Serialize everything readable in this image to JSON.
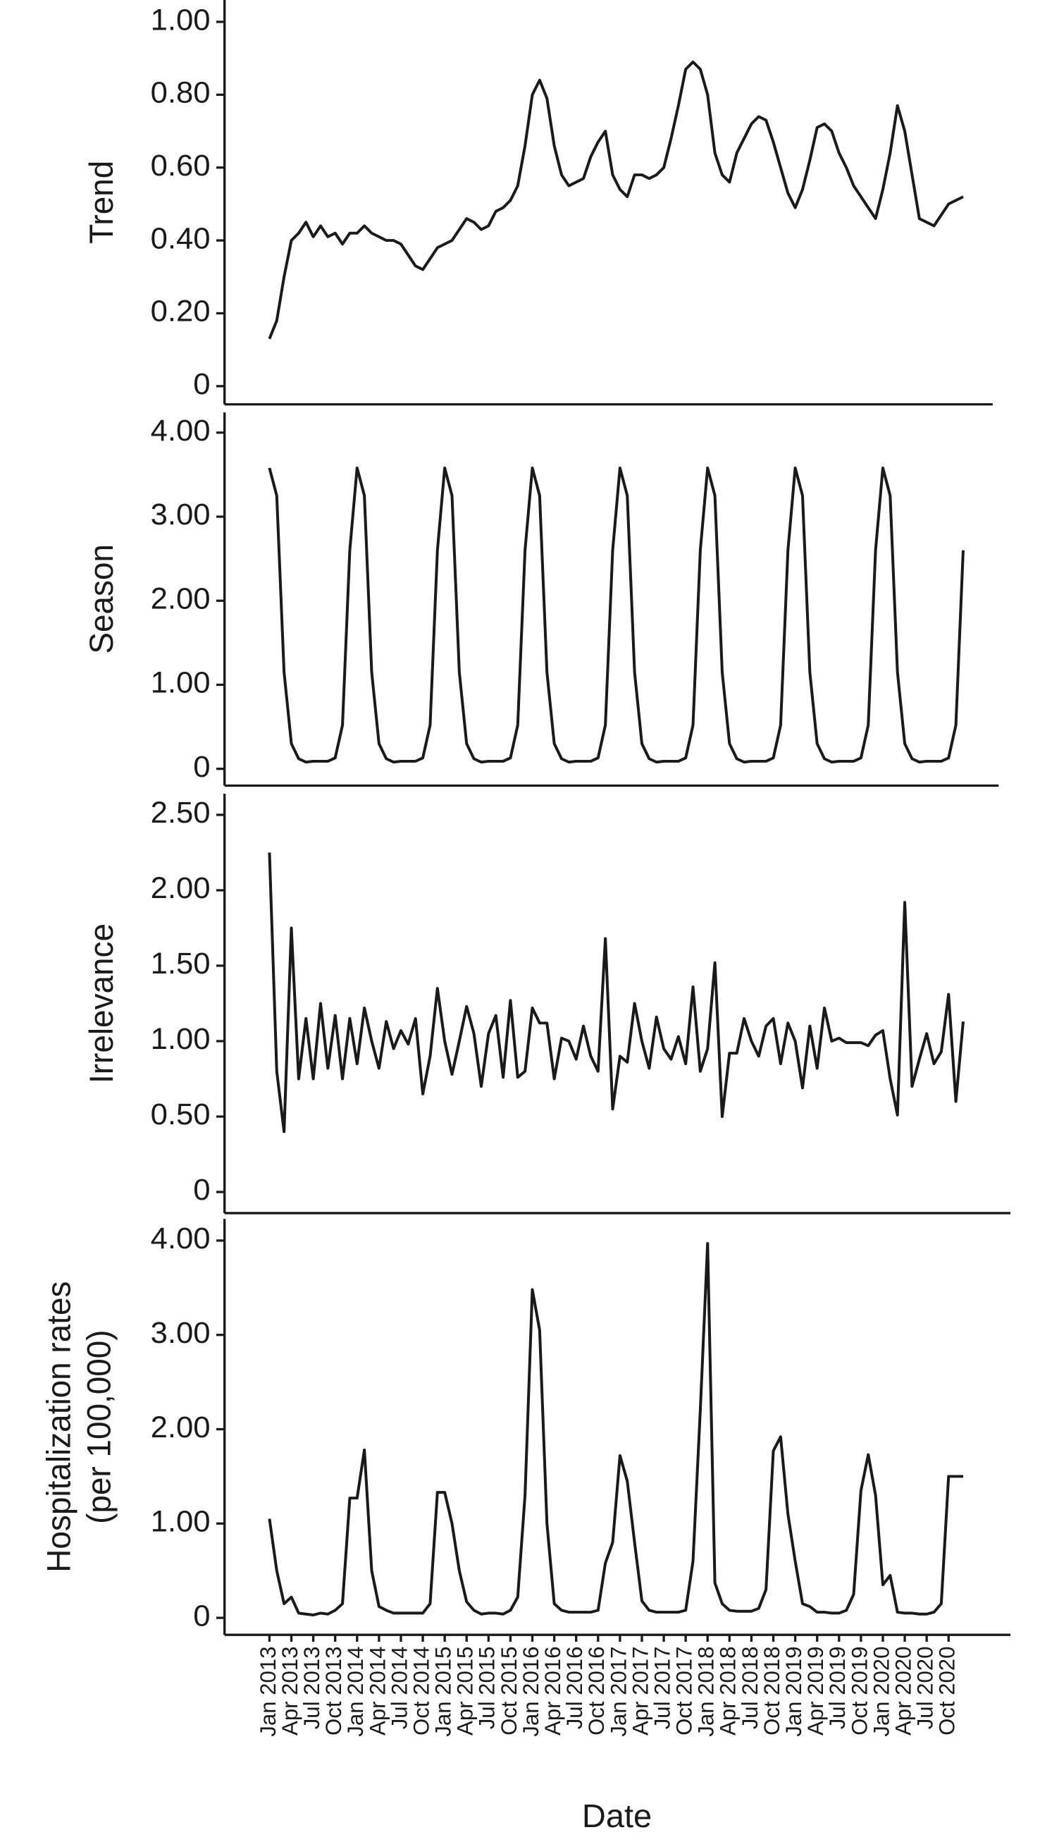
{
  "chart_data": [
    {
      "type": "line",
      "ylabel": "Trend",
      "color": "#1a1a1a",
      "ylim": [
        -0.05,
        1.06
      ],
      "yticks": [
        {
          "value": 0,
          "label": "0"
        },
        {
          "value": 0.2,
          "label": "0.20"
        },
        {
          "value": 0.4,
          "label": "0.40"
        },
        {
          "value": 0.6,
          "label": "0.60"
        },
        {
          "value": 0.8,
          "label": "0.80"
        },
        {
          "value": 1,
          "label": "1.00"
        }
      ],
      "values": [
        0.13,
        0.18,
        0.3,
        0.4,
        0.42,
        0.45,
        0.41,
        0.44,
        0.41,
        0.42,
        0.39,
        0.42,
        0.42,
        0.44,
        0.42,
        0.41,
        0.4,
        0.4,
        0.39,
        0.36,
        0.33,
        0.32,
        0.35,
        0.38,
        0.39,
        0.4,
        0.43,
        0.46,
        0.45,
        0.43,
        0.44,
        0.48,
        0.49,
        0.51,
        0.55,
        0.66,
        0.8,
        0.84,
        0.79,
        0.66,
        0.58,
        0.55,
        0.56,
        0.57,
        0.63,
        0.67,
        0.7,
        0.58,
        0.54,
        0.52,
        0.58,
        0.58,
        0.57,
        0.58,
        0.6,
        0.68,
        0.77,
        0.87,
        0.89,
        0.87,
        0.8,
        0.64,
        0.58,
        0.56,
        0.64,
        0.68,
        0.72,
        0.74,
        0.73,
        0.67,
        0.6,
        0.53,
        0.49,
        0.54,
        0.62,
        0.71,
        0.72,
        0.7,
        0.64,
        0.6,
        0.55,
        0.52,
        0.49,
        0.46,
        0.54,
        0.64,
        0.77,
        0.7,
        0.58,
        0.46,
        0.45,
        0.44,
        0.47,
        0.5,
        0.51,
        0.52
      ]
    },
    {
      "type": "line",
      "ylabel": "Season",
      "color": "#1a1a1a",
      "ylim": [
        -0.2,
        4.24
      ],
      "yticks": [
        {
          "value": 0,
          "label": "0"
        },
        {
          "value": 1,
          "label": "1.00"
        },
        {
          "value": 2,
          "label": "2.00"
        },
        {
          "value": 3,
          "label": "3.00"
        },
        {
          "value": 4,
          "label": "4.00"
        }
      ],
      "values": [
        3.58,
        3.25,
        1.15,
        0.3,
        0.12,
        0.08,
        0.09,
        0.09,
        0.09,
        0.13,
        0.52,
        2.6,
        3.58,
        3.25,
        1.15,
        0.3,
        0.12,
        0.08,
        0.09,
        0.09,
        0.09,
        0.13,
        0.52,
        2.6,
        3.58,
        3.25,
        1.15,
        0.3,
        0.12,
        0.08,
        0.09,
        0.09,
        0.09,
        0.13,
        0.52,
        2.6,
        3.58,
        3.25,
        1.15,
        0.3,
        0.12,
        0.08,
        0.09,
        0.09,
        0.09,
        0.13,
        0.52,
        2.6,
        3.58,
        3.25,
        1.15,
        0.3,
        0.12,
        0.08,
        0.09,
        0.09,
        0.09,
        0.13,
        0.52,
        2.6,
        3.58,
        3.25,
        1.15,
        0.3,
        0.12,
        0.08,
        0.09,
        0.09,
        0.09,
        0.13,
        0.52,
        2.6,
        3.58,
        3.25,
        1.15,
        0.3,
        0.12,
        0.08,
        0.09,
        0.09,
        0.09,
        0.13,
        0.52,
        2.6,
        3.58,
        3.25,
        1.15,
        0.3,
        0.12,
        0.08,
        0.09,
        0.09,
        0.09,
        0.13,
        0.52,
        2.6
      ]
    },
    {
      "type": "line",
      "ylabel": "Irrelevance",
      "color": "#1a1a1a",
      "ylim": [
        -0.14,
        2.64
      ],
      "yticks": [
        {
          "value": 0,
          "label": "0"
        },
        {
          "value": 0.5,
          "label": "0.50"
        },
        {
          "value": 1,
          "label": "1.00"
        },
        {
          "value": 1.5,
          "label": "1.50"
        },
        {
          "value": 2,
          "label": "2.00"
        },
        {
          "value": 2.5,
          "label": "2.50"
        }
      ],
      "values": [
        2.25,
        0.8,
        0.4,
        1.75,
        0.75,
        1.15,
        0.75,
        1.25,
        0.82,
        1.17,
        0.75,
        1.15,
        0.85,
        1.22,
        1.0,
        0.82,
        1.13,
        0.95,
        1.07,
        0.98,
        1.15,
        0.65,
        0.9,
        1.35,
        1.0,
        0.78,
        1.0,
        1.23,
        1.05,
        0.7,
        1.05,
        1.17,
        0.76,
        1.27,
        0.76,
        0.8,
        1.22,
        1.12,
        1.12,
        0.75,
        1.02,
        1.0,
        0.88,
        1.1,
        0.9,
        0.8,
        1.68,
        0.55,
        0.9,
        0.86,
        1.25,
        1.0,
        0.82,
        1.16,
        0.95,
        0.88,
        1.03,
        0.85,
        1.36,
        0.8,
        0.95,
        1.52,
        0.5,
        0.92,
        0.92,
        1.15,
        1.0,
        0.9,
        1.1,
        1.15,
        0.85,
        1.12,
        1.0,
        0.69,
        1.1,
        0.82,
        1.22,
        1.0,
        1.02,
        0.99,
        0.99,
        0.99,
        0.97,
        1.04,
        1.07,
        0.75,
        0.51,
        1.92,
        0.7,
        0.88,
        1.05,
        0.85,
        0.93,
        1.31,
        0.6,
        1.13
      ]
    },
    {
      "type": "line",
      "ylabel": [
        "Hospitalization rates",
        "(per 100,000)"
      ],
      "xlabel": "Date",
      "color": "#1a1a1a",
      "ylim": [
        -0.18,
        4.23
      ],
      "yticks": [
        {
          "value": 0,
          "label": "0"
        },
        {
          "value": 1,
          "label": "1.00"
        },
        {
          "value": 2,
          "label": "2.00"
        },
        {
          "value": 3,
          "label": "3.00"
        },
        {
          "value": 4,
          "label": "4.00"
        }
      ],
      "categories": [
        "Jan 2013",
        null,
        null,
        "Apr 2013",
        null,
        null,
        "Jul 2013",
        null,
        null,
        "Oct 2013",
        null,
        null,
        "Jan 2014",
        null,
        null,
        "Apr 2014",
        null,
        null,
        "Jul 2014",
        null,
        null,
        "Oct 2014",
        null,
        null,
        "Jan 2015",
        null,
        null,
        "Apr 2015",
        null,
        null,
        "Jul 2015",
        null,
        null,
        "Oct 2015",
        null,
        null,
        "Jan 2016",
        null,
        null,
        "Apr 2016",
        null,
        null,
        "Jul 2016",
        null,
        null,
        "Oct 2016",
        null,
        null,
        "Jan 2017",
        null,
        null,
        "Apr 2017",
        null,
        null,
        "Jul 2017",
        null,
        null,
        "Oct 2017",
        null,
        null,
        "Jan 2018",
        null,
        null,
        "Apr 2018",
        null,
        null,
        "Jul 2018",
        null,
        null,
        "Oct 2018",
        null,
        null,
        "Jan 2019",
        null,
        null,
        "Apr 2019",
        null,
        null,
        "Jul 2019",
        null,
        null,
        "Oct 2019",
        null,
        null,
        "Jan 2020",
        null,
        null,
        "Apr 2020",
        null,
        null,
        "Jul 2020",
        null,
        null,
        "Oct 2020",
        null,
        null
      ],
      "values": [
        1.05,
        0.5,
        0.15,
        0.22,
        0.05,
        0.04,
        0.03,
        0.05,
        0.04,
        0.08,
        0.15,
        1.27,
        1.27,
        1.78,
        0.5,
        0.12,
        0.08,
        0.05,
        0.05,
        0.05,
        0.05,
        0.05,
        0.15,
        1.33,
        1.33,
        1.0,
        0.5,
        0.17,
        0.08,
        0.04,
        0.05,
        0.05,
        0.04,
        0.08,
        0.22,
        1.3,
        3.48,
        3.05,
        1.0,
        0.15,
        0.08,
        0.06,
        0.06,
        0.06,
        0.06,
        0.08,
        0.58,
        0.8,
        1.72,
        1.45,
        0.8,
        0.18,
        0.08,
        0.06,
        0.06,
        0.06,
        0.06,
        0.08,
        0.6,
        2.2,
        3.97,
        0.37,
        0.15,
        0.08,
        0.07,
        0.07,
        0.07,
        0.1,
        0.3,
        1.77,
        1.92,
        1.1,
        0.6,
        0.15,
        0.12,
        0.06,
        0.06,
        0.05,
        0.05,
        0.08,
        0.25,
        1.35,
        1.73,
        1.3,
        0.35,
        0.45,
        0.06,
        0.05,
        0.05,
        0.04,
        0.04,
        0.06,
        0.15,
        1.5,
        1.5,
        1.5
      ]
    }
  ]
}
